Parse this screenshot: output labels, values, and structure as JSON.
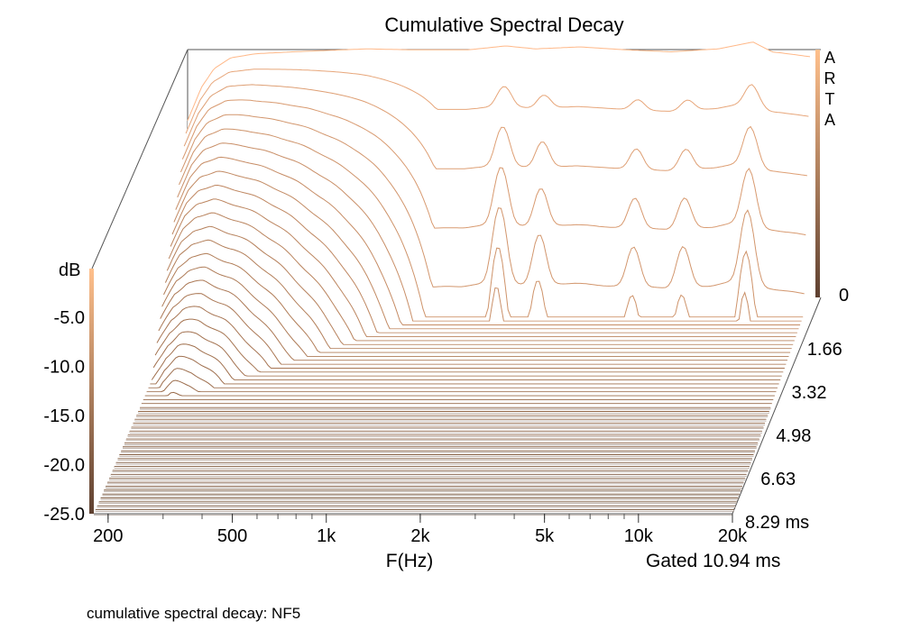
{
  "chart_data": {
    "type": "waterfall",
    "title": "Cumulative Spectral Decay",
    "watermark": "ARTA",
    "caption": "cumulative spectral decay: NF5",
    "xlabel": "F(Hz)",
    "zlabel": "dB",
    "gated_label": "Gated 10.94 ms",
    "x_scale": "log",
    "xlim": [
      180,
      20000
    ],
    "zlim": [
      -25,
      0
    ],
    "x_tick_values": [
      200,
      500,
      1000,
      2000,
      5000,
      10000,
      20000
    ],
    "x_tick_labels": [
      "200",
      "500",
      "1k",
      "2k",
      "5k",
      "10k",
      "20k"
    ],
    "z_tick_labels": [
      "-5.0",
      "-10.0",
      "-15.0",
      "-20.0",
      "-25.0"
    ],
    "z_axis_top_tick": "0",
    "time_tick_labels": [
      "1.66",
      "3.32",
      "4.98",
      "6.63",
      "8.29 ms"
    ],
    "time_ms_range": [
      0,
      8.29
    ],
    "slice_count": 56,
    "colors": {
      "front": "#ffb888",
      "back": "#6e4a30",
      "floor": "#5b3f2b"
    },
    "initial_response_db": [
      {
        "f": 180,
        "db": -7.0
      },
      {
        "f": 200,
        "db": -3.6
      },
      {
        "f": 220,
        "db": -1.7
      },
      {
        "f": 250,
        "db": -0.6
      },
      {
        "f": 300,
        "db": -0.2
      },
      {
        "f": 400,
        "db": 0.0
      },
      {
        "f": 700,
        "db": 0.3
      },
      {
        "f": 1000,
        "db": 0.2
      },
      {
        "f": 1500,
        "db": 0.2
      },
      {
        "f": 2000,
        "db": 0.6
      },
      {
        "f": 2500,
        "db": 0.3
      },
      {
        "f": 3500,
        "db": 0.5
      },
      {
        "f": 5000,
        "db": 0.2
      },
      {
        "f": 7000,
        "db": 0.0
      },
      {
        "f": 10000,
        "db": 0.3
      },
      {
        "f": 13000,
        "db": 1.0
      },
      {
        "f": 15000,
        "db": 0.0
      },
      {
        "f": 18000,
        "db": -0.3
      },
      {
        "f": 20000,
        "db": -0.5
      }
    ],
    "decay_resonances": [
      {
        "f": 2000,
        "level": 0.35
      },
      {
        "f": 2700,
        "level": 0.2
      },
      {
        "f": 5500,
        "level": 0.15
      },
      {
        "f": 8000,
        "level": 0.15
      },
      {
        "f": 13000,
        "level": 0.3
      }
    ]
  }
}
